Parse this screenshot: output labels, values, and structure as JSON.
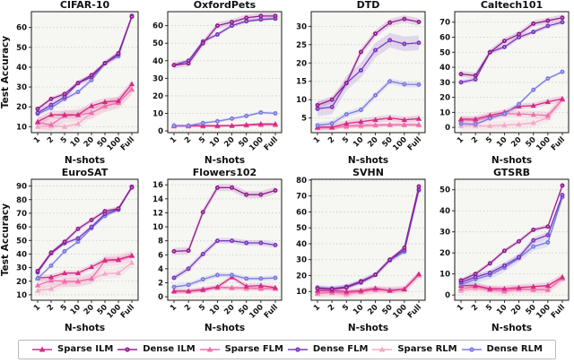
{
  "figure": {
    "xlabel": "N-shots",
    "ylabel": "Test Accuracy",
    "categories": [
      "1",
      "2",
      "5",
      "10",
      "20",
      "50",
      "100",
      "Full"
    ],
    "series_meta": [
      {
        "name": "Sparse ILM",
        "color": "#d62a85",
        "marker": "triangle"
      },
      {
        "name": "Dense ILM",
        "color": "#911d90",
        "marker": "circle"
      },
      {
        "name": "Sparse FLM",
        "color": "#ee6fab",
        "marker": "triangle"
      },
      {
        "name": "Dense FLM",
        "color": "#7838c0",
        "marker": "circle"
      },
      {
        "name": "Sparse RLM",
        "color": "#f3a8c5",
        "marker": "triangle"
      },
      {
        "name": "Dense RLM",
        "color": "#7b7ae3",
        "marker": "circle"
      }
    ],
    "colors": {
      "plot_background": "#f6f6f3",
      "gridline": "#c9c9c9",
      "spine": "#1a1a1a",
      "text": "#111111"
    }
  },
  "chart_data": [
    {
      "type": "line",
      "title": "CIFAR-10",
      "xlabel": "N-shots",
      "ylabel": "Test Accuracy",
      "categories": [
        "1",
        "2",
        "5",
        "10",
        "20",
        "50",
        "100",
        "Full"
      ],
      "ylim": [
        7,
        68
      ],
      "yticks": [
        10,
        20,
        30,
        40,
        50,
        60
      ],
      "grid": true,
      "series": [
        {
          "name": "Sparse ILM",
          "values": [
            12.5,
            16,
            16,
            16,
            20.5,
            22.5,
            23,
            31.5
          ],
          "band": 2
        },
        {
          "name": "Dense ILM",
          "values": [
            19,
            24,
            26.5,
            32,
            36,
            42,
            47,
            65.5
          ],
          "band": 1
        },
        {
          "name": "Sparse FLM",
          "values": [
            12,
            11,
            15.5,
            16,
            17,
            20.5,
            22,
            29
          ],
          "band": 3
        },
        {
          "name": "Dense FLM",
          "values": [
            17,
            21,
            25,
            32,
            35,
            42,
            46.5,
            65.5
          ],
          "band": 1.5
        },
        {
          "name": "Sparse RLM",
          "values": [
            10,
            10.5,
            10,
            11.5,
            17,
            20,
            22.5,
            28.5
          ],
          "band": 2.5
        },
        {
          "name": "Dense RLM",
          "values": [
            16.5,
            19.5,
            24,
            27.5,
            33.5,
            42,
            45.5,
            66
          ],
          "band": 1
        }
      ]
    },
    {
      "type": "line",
      "title": "OxfordPets",
      "xlabel": "N-shots",
      "ylabel": "",
      "categories": [
        "1",
        "2",
        "5",
        "10",
        "20",
        "50",
        "100",
        "Full"
      ],
      "ylim": [
        -1,
        68
      ],
      "yticks": [
        0,
        10,
        20,
        30,
        40,
        50,
        60
      ],
      "grid": true,
      "series": [
        {
          "name": "Sparse ILM",
          "values": [
            3,
            3,
            3,
            3,
            3,
            3.5,
            4,
            4
          ],
          "band": 0.6
        },
        {
          "name": "Dense ILM",
          "values": [
            37.5,
            38.5,
            50,
            60,
            62,
            64.5,
            65.5,
            65.5
          ],
          "band": 1.8
        },
        {
          "name": "Sparse FLM",
          "values": [
            2.8,
            2.8,
            2.8,
            2.8,
            3,
            3.2,
            3.5,
            3.5
          ],
          "band": 0.5
        },
        {
          "name": "Dense FLM",
          "values": [
            37.5,
            40,
            51,
            55,
            60,
            62.5,
            63.5,
            64
          ],
          "band": 1
        },
        {
          "name": "Sparse RLM",
          "values": [
            2.5,
            2.5,
            2.5,
            2.5,
            2.8,
            3,
            3.2,
            3.2
          ],
          "band": 0.5
        },
        {
          "name": "Dense RLM",
          "values": [
            3,
            3,
            4.5,
            5.5,
            7,
            8.5,
            10.5,
            10
          ],
          "band": 0.8
        }
      ]
    },
    {
      "type": "line",
      "title": "DTD",
      "xlabel": "N-shots",
      "ylabel": "",
      "categories": [
        "1",
        "2",
        "5",
        "10",
        "20",
        "50",
        "100",
        "Full"
      ],
      "ylim": [
        1,
        34
      ],
      "yticks": [
        5,
        10,
        15,
        20,
        25,
        30
      ],
      "grid": true,
      "series": [
        {
          "name": "Sparse ILM",
          "values": [
            2.5,
            2.5,
            3.5,
            4,
            4.5,
            5,
            4.5,
            4.8
          ],
          "band": 0.9
        },
        {
          "name": "Dense ILM",
          "values": [
            8.5,
            10,
            14.5,
            23,
            28,
            31,
            32,
            31.2
          ],
          "band": 1
        },
        {
          "name": "Sparse FLM",
          "values": [
            2.3,
            2.4,
            2.8,
            3,
            3.1,
            3.2,
            3.2,
            3.2
          ],
          "band": 0.5
        },
        {
          "name": "Dense FLM",
          "values": [
            7.5,
            8,
            14.5,
            18,
            23.5,
            26.2,
            25.2,
            25.5
          ],
          "band": 2
        },
        {
          "name": "Sparse RLM",
          "values": [
            2.2,
            2.3,
            2.5,
            2.7,
            2.9,
            3,
            3,
            3
          ],
          "band": 0.5
        },
        {
          "name": "Dense RLM",
          "values": [
            3,
            3.5,
            6,
            7.2,
            11.2,
            15,
            14.2,
            14.1
          ],
          "band": 0.8
        }
      ]
    },
    {
      "type": "line",
      "title": "Caltech101",
      "xlabel": "N-shots",
      "ylabel": "",
      "categories": [
        "1",
        "2",
        "5",
        "10",
        "20",
        "50",
        "100",
        "Full"
      ],
      "ylim": [
        -3.5,
        77
      ],
      "yticks": [
        0,
        10,
        20,
        30,
        40,
        50,
        60,
        70
      ],
      "grid": true,
      "series": [
        {
          "name": "Sparse ILM",
          "values": [
            5.5,
            5.5,
            8,
            10,
            14,
            14.5,
            17,
            19
          ],
          "band": 2
        },
        {
          "name": "Dense ILM",
          "values": [
            35.5,
            34.5,
            50,
            57.5,
            62,
            69,
            71,
            73
          ],
          "band": 2
        },
        {
          "name": "Sparse FLM",
          "values": [
            5,
            4.5,
            7,
            9,
            9,
            8.5,
            8,
            18.5
          ],
          "band": 2.5
        },
        {
          "name": "Dense FLM",
          "values": [
            30,
            32,
            50,
            53.5,
            60,
            63.5,
            67.5,
            70
          ],
          "band": 1.5
        },
        {
          "name": "Sparse RLM",
          "values": [
            1,
            1,
            1,
            1.5,
            2,
            3,
            6.5,
            18.5
          ],
          "band": 3
        },
        {
          "name": "Dense RLM",
          "values": [
            2.5,
            2,
            6,
            9,
            15.5,
            25,
            32.5,
            37
          ],
          "band": 1
        }
      ]
    },
    {
      "type": "line",
      "title": "EuroSAT",
      "xlabel": "N-shots",
      "ylabel": "Test Accuracy",
      "categories": [
        "1",
        "2",
        "5",
        "10",
        "20",
        "50",
        "100",
        "Full"
      ],
      "ylim": [
        6,
        95
      ],
      "yticks": [
        10,
        20,
        30,
        40,
        50,
        60,
        70,
        80,
        90
      ],
      "grid": true,
      "series": [
        {
          "name": "Sparse ILM",
          "values": [
            22.5,
            23,
            26,
            26,
            30.5,
            35.5,
            36,
            39
          ],
          "band": 2
        },
        {
          "name": "Dense ILM",
          "values": [
            27.5,
            41,
            49,
            58.5,
            65,
            71.5,
            73.5,
            89
          ],
          "band": 1.5
        },
        {
          "name": "Sparse FLM",
          "values": [
            17,
            20.5,
            20,
            20,
            22,
            35,
            35.5,
            38.5
          ],
          "band": 4
        },
        {
          "name": "Dense FLM",
          "values": [
            26.5,
            40.5,
            48,
            51.5,
            60,
            69.5,
            73,
            89.5
          ],
          "band": 1.5
        },
        {
          "name": "Sparse RLM",
          "values": [
            13,
            14.5,
            19,
            19.5,
            21.5,
            25.5,
            26,
            33.5
          ],
          "band": 3.5
        },
        {
          "name": "Dense RLM",
          "values": [
            22,
            31.5,
            42,
            49,
            59,
            68,
            72.5,
            89.5
          ],
          "band": 1
        }
      ]
    },
    {
      "type": "line",
      "title": "Flowers102",
      "xlabel": "N-shots",
      "ylabel": "",
      "categories": [
        "1",
        "2",
        "5",
        "10",
        "20",
        "50",
        "100",
        "Full"
      ],
      "ylim": [
        -0.5,
        16.8
      ],
      "yticks": [
        0,
        2,
        4,
        6,
        8,
        10,
        12,
        14,
        16
      ],
      "grid": true,
      "series": [
        {
          "name": "Sparse ILM",
          "values": [
            0.8,
            0.8,
            1.0,
            1.4,
            2.8,
            1.5,
            1.6,
            1.3
          ],
          "band": 0.35
        },
        {
          "name": "Dense ILM",
          "values": [
            6.5,
            6.6,
            12.1,
            15.6,
            15.6,
            14.6,
            14.6,
            15.2
          ],
          "band": 0.5
        },
        {
          "name": "Sparse FLM",
          "values": [
            0.8,
            0.8,
            1.1,
            1.4,
            1.3,
            1.3,
            1.2,
            1.2
          ],
          "band": 0.3
        },
        {
          "name": "Dense FLM",
          "values": [
            2.7,
            4.0,
            6.1,
            8.0,
            8.0,
            7.7,
            7.7,
            7.4
          ],
          "band": 0.4
        },
        {
          "name": "Sparse RLM",
          "values": [
            0.7,
            0.7,
            0.9,
            1.2,
            1.2,
            1.1,
            1.1,
            1.1
          ],
          "band": 0.3
        },
        {
          "name": "Dense RLM",
          "values": [
            1.4,
            1.7,
            2.5,
            3.1,
            3.1,
            2.6,
            2.6,
            2.7
          ],
          "band": 0.35
        }
      ]
    },
    {
      "type": "line",
      "title": "SVHN",
      "xlabel": "N-shots",
      "ylabel": "",
      "categories": [
        "1",
        "2",
        "5",
        "10",
        "20",
        "50",
        "100",
        "Full"
      ],
      "ylim": [
        4.5,
        80.5
      ],
      "yticks": [
        10,
        20,
        30,
        40,
        50,
        60,
        70,
        80
      ],
      "grid": true,
      "series": [
        {
          "name": "Sparse ILM",
          "values": [
            10.5,
            10.5,
            10,
            10.5,
            12,
            10.5,
            11.5,
            21
          ],
          "band": 1.5
        },
        {
          "name": "Dense ILM",
          "values": [
            12,
            11.5,
            12.5,
            16,
            20.5,
            30,
            37.5,
            76
          ],
          "band": 1
        },
        {
          "name": "Sparse FLM",
          "values": [
            9,
            9.5,
            9,
            10,
            11,
            11,
            11.5,
            20.5
          ],
          "band": 2
        },
        {
          "name": "Dense FLM",
          "values": [
            12,
            11.5,
            13,
            16.5,
            20.5,
            30,
            36,
            74
          ],
          "band": 1.5
        },
        {
          "name": "Sparse RLM",
          "values": [
            8.5,
            9,
            8,
            9.5,
            11,
            10.5,
            11,
            20
          ],
          "band": 2.5
        },
        {
          "name": "Dense RLM",
          "values": [
            12.5,
            12,
            13,
            15.5,
            20.5,
            29.5,
            35,
            73.5
          ],
          "band": 1.5
        }
      ]
    },
    {
      "type": "line",
      "title": "GTSRB",
      "xlabel": "N-shots",
      "ylabel": "",
      "categories": [
        "1",
        "2",
        "5",
        "10",
        "20",
        "50",
        "100",
        "Full"
      ],
      "ylim": [
        -2.5,
        55
      ],
      "yticks": [
        0,
        10,
        20,
        30,
        40,
        50
      ],
      "grid": true,
      "series": [
        {
          "name": "Sparse ILM",
          "values": [
            4.5,
            4.5,
            3,
            3,
            3.5,
            4,
            4.5,
            8.5
          ],
          "band": 1.5
        },
        {
          "name": "Dense ILM",
          "values": [
            7,
            10,
            15,
            21,
            25.5,
            31,
            32.5,
            52
          ],
          "band": 1
        },
        {
          "name": "Sparse FLM",
          "values": [
            3,
            4,
            2.5,
            2,
            3,
            2.5,
            2.5,
            8
          ],
          "band": 1.5
        },
        {
          "name": "Dense FLM",
          "values": [
            6,
            8.5,
            10.5,
            14,
            18,
            26,
            28.5,
            47.5
          ],
          "band": 1.5
        },
        {
          "name": "Sparse RLM",
          "values": [
            2,
            3,
            2.5,
            1.5,
            2.5,
            2.5,
            2.5,
            7.5
          ],
          "band": 2
        },
        {
          "name": "Dense RLM",
          "values": [
            5,
            7.5,
            9.5,
            13,
            17.5,
            23,
            25,
            46.5
          ],
          "band": 2
        }
      ]
    }
  ],
  "legend": {
    "items": [
      {
        "label": "Sparse ILM"
      },
      {
        "label": "Dense ILM"
      },
      {
        "label": "Sparse FLM"
      },
      {
        "label": "Dense FLM"
      },
      {
        "label": "Sparse RLM"
      },
      {
        "label": "Dense RLM"
      }
    ]
  }
}
